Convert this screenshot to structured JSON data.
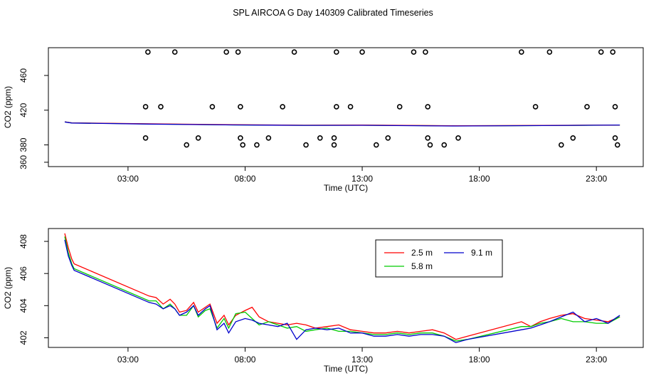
{
  "title": "SPL AIRCOA G  Day 140309  Calibrated Timeseries",
  "chart_data": [
    {
      "type": "scatter",
      "xlabel": "Time (UTC)",
      "ylabel": "CO2 (ppm)",
      "x_ticks": [
        "03:00",
        "08:00",
        "13:00",
        "18:00",
        "23:00"
      ],
      "x_tick_hours": [
        3,
        8,
        13,
        18,
        23
      ],
      "y_ticks": [
        360,
        380,
        420,
        460
      ],
      "xlim": [
        -0.4,
        25.0
      ],
      "ylim": [
        355,
        492
      ],
      "markers": "open-circle",
      "points": [
        [
          3.85,
          487
        ],
        [
          3.75,
          424
        ],
        [
          3.75,
          388
        ],
        [
          4.4,
          424
        ],
        [
          5.0,
          487
        ],
        [
          5.5,
          380
        ],
        [
          6.0,
          388
        ],
        [
          6.6,
          424
        ],
        [
          7.2,
          487
        ],
        [
          7.7,
          487
        ],
        [
          7.8,
          424
        ],
        [
          7.8,
          388
        ],
        [
          7.9,
          380
        ],
        [
          8.5,
          380
        ],
        [
          9.0,
          388
        ],
        [
          9.6,
          424
        ],
        [
          10.1,
          487
        ],
        [
          10.6,
          380
        ],
        [
          11.2,
          388
        ],
        [
          11.8,
          388
        ],
        [
          11.8,
          380
        ],
        [
          11.9,
          424
        ],
        [
          11.9,
          487
        ],
        [
          12.5,
          424
        ],
        [
          13.0,
          487
        ],
        [
          13.6,
          380
        ],
        [
          14.1,
          388
        ],
        [
          14.6,
          424
        ],
        [
          15.2,
          487
        ],
        [
          15.7,
          487
        ],
        [
          15.8,
          424
        ],
        [
          15.8,
          388
        ],
        [
          15.9,
          380
        ],
        [
          16.5,
          380
        ],
        [
          17.1,
          388
        ],
        [
          19.8,
          487
        ],
        [
          20.4,
          424
        ],
        [
          21.0,
          487
        ],
        [
          21.5,
          380
        ],
        [
          22.0,
          388
        ],
        [
          22.6,
          424
        ],
        [
          23.2,
          487
        ],
        [
          23.7,
          487
        ],
        [
          23.8,
          424
        ],
        [
          23.8,
          388
        ],
        [
          23.9,
          380
        ]
      ],
      "series": [
        {
          "color": "#00cc00",
          "values": [
            [
              0.3,
              406.5
            ],
            [
              0.6,
              405.3
            ],
            [
              3.9,
              404.1
            ],
            [
              7.5,
              403.0
            ],
            [
              10.5,
              402.6
            ],
            [
              13.0,
              402.7
            ],
            [
              17.0,
              401.9
            ],
            [
              20.0,
              402.2
            ],
            [
              24.0,
              402.8
            ]
          ]
        },
        {
          "color": "#ff0000",
          "values": [
            [
              0.3,
              406.6
            ],
            [
              0.6,
              405.4
            ],
            [
              3.9,
              404.3
            ],
            [
              7.5,
              403.2
            ],
            [
              10.5,
              402.7
            ],
            [
              13.0,
              402.8
            ],
            [
              17.0,
              402.0
            ],
            [
              20.0,
              402.3
            ],
            [
              24.0,
              402.9
            ]
          ]
        },
        {
          "color": "#0000cc",
          "values": [
            [
              0.3,
              406.4
            ],
            [
              0.6,
              405.2
            ],
            [
              3.9,
              404.0
            ],
            [
              7.5,
              403.0
            ],
            [
              10.5,
              402.5
            ],
            [
              13.0,
              402.6
            ],
            [
              17.0,
              401.8
            ],
            [
              20.0,
              402.2
            ],
            [
              24.0,
              402.9
            ]
          ]
        }
      ]
    },
    {
      "type": "line",
      "xlabel": "Time (UTC)",
      "ylabel": "CO2 (ppm)",
      "x_ticks": [
        "03:00",
        "08:00",
        "13:00",
        "18:00",
        "23:00"
      ],
      "x_tick_hours": [
        3,
        8,
        13,
        18,
        23
      ],
      "y_ticks": [
        402,
        404,
        406,
        408
      ],
      "xlim": [
        -0.4,
        25.0
      ],
      "ylim": [
        401.4,
        408.8
      ],
      "legend_position": "top-right",
      "series": [
        {
          "name": "2.5 m",
          "color": "#ff0000",
          "values": [
            [
              0.3,
              408.5
            ],
            [
              0.45,
              407.6
            ],
            [
              0.6,
              406.9
            ],
            [
              0.7,
              406.6
            ],
            [
              3.9,
              404.6
            ],
            [
              4.2,
              404.5
            ],
            [
              4.5,
              404.1
            ],
            [
              4.8,
              404.4
            ],
            [
              5.0,
              404.1
            ],
            [
              5.2,
              403.6
            ],
            [
              5.5,
              403.7
            ],
            [
              5.8,
              404.2
            ],
            [
              6.0,
              403.6
            ],
            [
              6.3,
              403.9
            ],
            [
              6.5,
              404.1
            ],
            [
              6.8,
              402.9
            ],
            [
              7.1,
              403.4
            ],
            [
              7.3,
              402.8
            ],
            [
              7.6,
              403.4
            ],
            [
              8.0,
              403.7
            ],
            [
              8.3,
              403.9
            ],
            [
              8.6,
              403.3
            ],
            [
              9.0,
              403.0
            ],
            [
              9.4,
              402.9
            ],
            [
              9.8,
              402.8
            ],
            [
              10.2,
              402.9
            ],
            [
              10.6,
              402.8
            ],
            [
              11.0,
              402.6
            ],
            [
              11.5,
              402.7
            ],
            [
              12.0,
              402.8
            ],
            [
              12.5,
              402.5
            ],
            [
              13.0,
              402.4
            ],
            [
              13.5,
              402.3
            ],
            [
              14.0,
              402.3
            ],
            [
              14.5,
              402.4
            ],
            [
              15.0,
              402.3
            ],
            [
              15.5,
              402.4
            ],
            [
              16.0,
              402.5
            ],
            [
              16.5,
              402.3
            ],
            [
              17.0,
              401.9
            ],
            [
              17.5,
              402.1
            ],
            [
              19.8,
              403.0
            ],
            [
              20.2,
              402.7
            ],
            [
              20.6,
              403.0
            ],
            [
              21.0,
              403.2
            ],
            [
              21.5,
              403.4
            ],
            [
              22.0,
              403.5
            ],
            [
              22.5,
              403.2
            ],
            [
              23.0,
              403.1
            ],
            [
              23.5,
              403.0
            ],
            [
              24.0,
              403.3
            ]
          ]
        },
        {
          "name": "5.8 m",
          "color": "#00cc00",
          "values": [
            [
              0.3,
              408.3
            ],
            [
              0.45,
              407.3
            ],
            [
              0.6,
              406.6
            ],
            [
              0.7,
              406.3
            ],
            [
              3.9,
              404.3
            ],
            [
              4.2,
              404.3
            ],
            [
              4.5,
              403.8
            ],
            [
              4.8,
              404.1
            ],
            [
              5.0,
              403.8
            ],
            [
              5.2,
              403.4
            ],
            [
              5.5,
              403.4
            ],
            [
              5.8,
              404.0
            ],
            [
              6.0,
              403.3
            ],
            [
              6.3,
              403.7
            ],
            [
              6.5,
              403.8
            ],
            [
              6.8,
              402.6
            ],
            [
              7.1,
              403.2
            ],
            [
              7.3,
              402.6
            ],
            [
              7.6,
              403.5
            ],
            [
              8.0,
              403.6
            ],
            [
              8.3,
              403.2
            ],
            [
              8.6,
              402.8
            ],
            [
              9.0,
              403.0
            ],
            [
              9.4,
              402.8
            ],
            [
              9.8,
              402.6
            ],
            [
              10.2,
              402.7
            ],
            [
              10.6,
              402.4
            ],
            [
              11.0,
              402.5
            ],
            [
              11.5,
              402.6
            ],
            [
              12.0,
              402.4
            ],
            [
              12.5,
              402.4
            ],
            [
              13.0,
              402.3
            ],
            [
              13.5,
              402.2
            ],
            [
              14.0,
              402.2
            ],
            [
              14.5,
              402.3
            ],
            [
              15.0,
              402.2
            ],
            [
              15.5,
              402.3
            ],
            [
              16.0,
              402.3
            ],
            [
              16.5,
              402.1
            ],
            [
              17.0,
              401.8
            ],
            [
              17.5,
              401.9
            ],
            [
              19.8,
              402.7
            ],
            [
              20.2,
              402.7
            ],
            [
              20.6,
              402.9
            ],
            [
              21.0,
              403.0
            ],
            [
              21.5,
              403.2
            ],
            [
              22.0,
              403.0
            ],
            [
              22.5,
              403.0
            ],
            [
              23.0,
              402.9
            ],
            [
              23.5,
              402.9
            ],
            [
              24.0,
              403.3
            ]
          ]
        },
        {
          "name": "9.1 m",
          "color": "#0000cc",
          "values": [
            [
              0.3,
              408.1
            ],
            [
              0.45,
              407.1
            ],
            [
              0.6,
              406.5
            ],
            [
              0.7,
              406.2
            ],
            [
              3.9,
              404.2
            ],
            [
              4.2,
              404.1
            ],
            [
              4.5,
              403.8
            ],
            [
              4.8,
              404.0
            ],
            [
              5.0,
              403.8
            ],
            [
              5.2,
              403.4
            ],
            [
              5.5,
              403.6
            ],
            [
              5.8,
              404.0
            ],
            [
              6.0,
              403.4
            ],
            [
              6.3,
              403.8
            ],
            [
              6.5,
              404.0
            ],
            [
              6.8,
              402.5
            ],
            [
              7.1,
              402.9
            ],
            [
              7.3,
              402.3
            ],
            [
              7.6,
              403.0
            ],
            [
              8.0,
              403.2
            ],
            [
              8.3,
              403.1
            ],
            [
              8.6,
              402.9
            ],
            [
              9.0,
              402.8
            ],
            [
              9.4,
              402.7
            ],
            [
              9.8,
              402.9
            ],
            [
              10.2,
              401.9
            ],
            [
              10.6,
              402.5
            ],
            [
              11.0,
              402.6
            ],
            [
              11.5,
              402.5
            ],
            [
              12.0,
              402.6
            ],
            [
              12.5,
              402.3
            ],
            [
              13.0,
              402.3
            ],
            [
              13.5,
              402.1
            ],
            [
              14.0,
              402.1
            ],
            [
              14.5,
              402.2
            ],
            [
              15.0,
              402.1
            ],
            [
              15.5,
              402.2
            ],
            [
              16.0,
              402.2
            ],
            [
              16.5,
              402.1
            ],
            [
              17.0,
              401.7
            ],
            [
              17.5,
              401.9
            ],
            [
              19.8,
              402.5
            ],
            [
              20.2,
              402.6
            ],
            [
              20.6,
              402.8
            ],
            [
              21.0,
              403.0
            ],
            [
              21.5,
              403.3
            ],
            [
              22.0,
              403.6
            ],
            [
              22.5,
              403.0
            ],
            [
              23.0,
              403.2
            ],
            [
              23.5,
              402.9
            ],
            [
              24.0,
              403.4
            ]
          ]
        }
      ]
    }
  ]
}
